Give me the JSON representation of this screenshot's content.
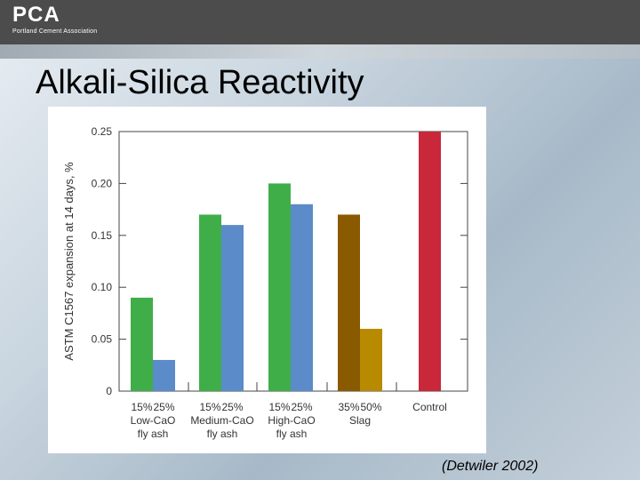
{
  "logo": {
    "mark": "PCA",
    "caption": "Portland Cement Association"
  },
  "slide": {
    "title": "Alkali-Silica Reactivity",
    "citation": "(Detwiler 2002)"
  },
  "chart_data": {
    "type": "bar",
    "title": "",
    "xlabel": "",
    "ylabel": "ASTM C1567 expansion at 14 days, %",
    "ylim": [
      0,
      0.25
    ],
    "yticks": [
      0,
      0.05,
      0.1,
      0.15,
      0.2,
      0.25
    ],
    "ytick_labels": [
      "0",
      "0.05",
      "0.10",
      "0.15",
      "0.20",
      "0.25"
    ],
    "grid": false,
    "legend": "none",
    "groups": [
      {
        "label_lines": [
          "Low-CaO",
          "fly ash"
        ],
        "bars": [
          {
            "label": "15%",
            "value": 0.09,
            "color": "#3fae49"
          },
          {
            "label": "25%",
            "value": 0.03,
            "color": "#5b8bc9"
          }
        ]
      },
      {
        "label_lines": [
          "Medium-CaO",
          "fly ash"
        ],
        "bars": [
          {
            "label": "15%",
            "value": 0.17,
            "color": "#3fae49"
          },
          {
            "label": "25%",
            "value": 0.16,
            "color": "#5b8bc9"
          }
        ]
      },
      {
        "label_lines": [
          "High-CaO",
          "fly ash"
        ],
        "bars": [
          {
            "label": "15%",
            "value": 0.2,
            "color": "#3fae49"
          },
          {
            "label": "25%",
            "value": 0.18,
            "color": "#5b8bc9"
          }
        ]
      },
      {
        "label_lines": [
          "Slag"
        ],
        "bars": [
          {
            "label": "35%",
            "value": 0.17,
            "color": "#8a5a00"
          },
          {
            "label": "50%",
            "value": 0.06,
            "color": "#b88a00"
          }
        ]
      },
      {
        "label_lines": [],
        "bars": [
          {
            "label": "Control",
            "value": 0.25,
            "color": "#c8283a"
          }
        ]
      }
    ]
  }
}
